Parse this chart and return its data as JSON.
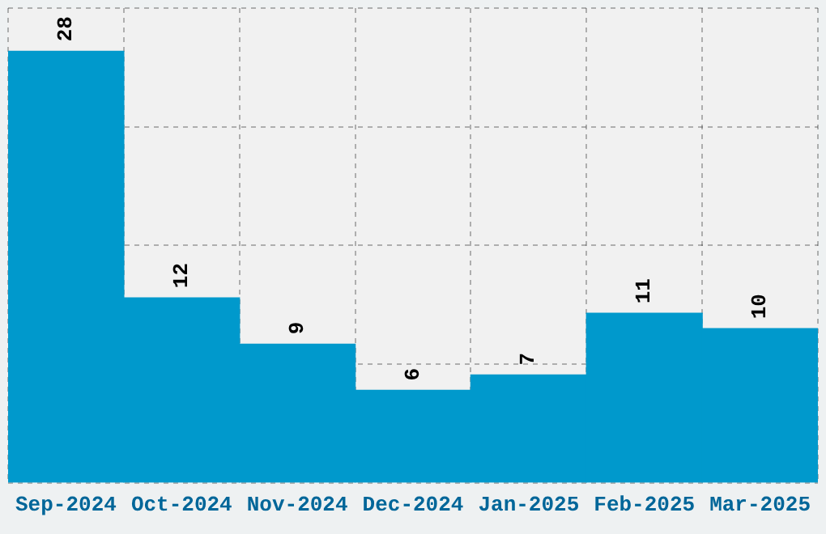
{
  "chart_data": {
    "type": "bar",
    "categories": [
      "Sep-2024",
      "Oct-2024",
      "Nov-2024",
      "Dec-2024",
      "Jan-2025",
      "Feb-2025",
      "Mar-2025"
    ],
    "values": [
      28,
      12,
      9,
      6,
      7,
      11,
      10
    ],
    "color": "#0099cc",
    "ylim": [
      0,
      30.8
    ],
    "yticks": [
      {
        "value": 0,
        "label": null
      },
      {
        "value": 7.7,
        "label": null
      },
      {
        "value": 15.4,
        "label": null
      },
      {
        "value": 23.1,
        "label": null
      },
      {
        "value": 30.8,
        "label": null
      }
    ],
    "tick_labels": "x",
    "grid": true,
    "legend": false,
    "data_labels": true
  }
}
